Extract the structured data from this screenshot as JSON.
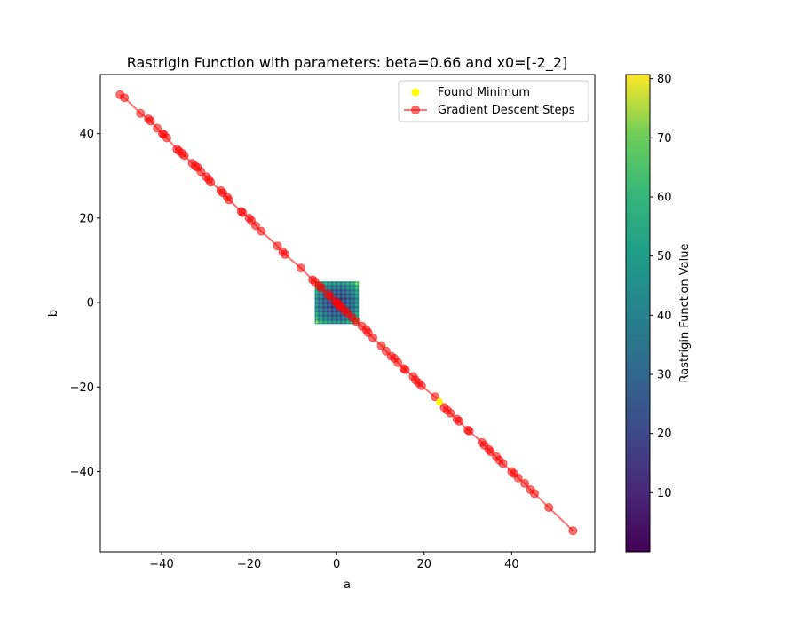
{
  "chart_data": {
    "type": "scatter",
    "title": "Rastrigin Function with parameters: beta=0.66 and x0=[-2_2]",
    "xlabel": "a",
    "ylabel": "b",
    "xlim": [
      -54,
      59
    ],
    "ylim": [
      -59,
      54
    ],
    "xticks": [
      -40,
      -20,
      0,
      20,
      40
    ],
    "yticks": [
      -40,
      -20,
      0,
      20,
      40
    ],
    "xtick_labels": [
      "−40",
      "−20",
      "0",
      "20",
      "40"
    ],
    "ytick_labels": [
      "−40",
      "−20",
      "0",
      "20",
      "40"
    ],
    "grid": false,
    "legend_position": "top-right",
    "legend": [
      "Found Minimum",
      "Gradient Descent Steps"
    ],
    "heatmap": {
      "x_range": [
        -5,
        5
      ],
      "y_range": [
        -5,
        5
      ],
      "colormap": "viridis",
      "value_range": [
        0,
        80.7
      ],
      "colorbar_label": "Rastrigin Function Value",
      "colorbar_ticks": [
        10,
        20,
        30,
        40,
        50,
        60,
        70,
        80
      ]
    },
    "series": [
      {
        "name": "Gradient Descent Steps",
        "color": "#ff0000",
        "alpha": 0.55,
        "x": [
          -49.5,
          -48.5,
          -44.8,
          -43.0,
          -42.5,
          -41.0,
          -39.8,
          -39.5,
          -38.8,
          -36.5,
          -36.0,
          -35.3,
          -34.8,
          -33.0,
          -32.3,
          -31.8,
          -31.0,
          -29.8,
          -29.2,
          -28.8,
          -26.5,
          -26.0,
          -25.0,
          -24.6,
          -21.8,
          -21.5,
          -20.0,
          -19.5,
          -18.5,
          -17.2,
          -13.5,
          -12.3,
          -11.8,
          -8.2,
          -5.5,
          -5.0,
          -4.0,
          -3.5,
          -2.0,
          -1.5,
          -0.3,
          0.2,
          0.5,
          1.0,
          1.8,
          2.5,
          3.5,
          4.5,
          5.8,
          6.8,
          7.2,
          8.3,
          10.2,
          11.3,
          12.5,
          13.2,
          14.0,
          15.3,
          15.7,
          17.5,
          18.0,
          18.7,
          19.4,
          22.5,
          24.6,
          25.3,
          26.0,
          27.5,
          28.0,
          30.0,
          30.3,
          33.2,
          33.8,
          34.8,
          35.2,
          36.5,
          37.2,
          38.0,
          40.0,
          40.5,
          41.5,
          43.0,
          44.3,
          45.2,
          48.5,
          54.0
        ],
        "y": [
          49.2,
          48.5,
          44.8,
          43.5,
          43.0,
          41.3,
          40.0,
          39.8,
          39.0,
          36.3,
          35.9,
          35.3,
          34.8,
          33.0,
          32.3,
          32.0,
          31.0,
          29.8,
          29.2,
          28.5,
          26.5,
          26.0,
          25.0,
          24.3,
          21.6,
          21.3,
          20.0,
          19.4,
          18.2,
          16.9,
          13.4,
          12.0,
          11.4,
          8.2,
          5.4,
          5.0,
          4.0,
          3.5,
          2.0,
          1.5,
          0.3,
          -0.2,
          -0.5,
          -1.0,
          -1.8,
          -2.5,
          -3.5,
          -4.5,
          -5.6,
          -6.5,
          -7.1,
          -8.3,
          -10.2,
          -11.5,
          -12.7,
          -13.2,
          -14.2,
          -15.6,
          -15.9,
          -17.5,
          -18.3,
          -19.0,
          -19.7,
          -22.3,
          -24.8,
          -25.5,
          -26.2,
          -27.6,
          -28.1,
          -30.2,
          -30.4,
          -33.1,
          -33.8,
          -34.8,
          -35.3,
          -36.5,
          -37.3,
          -38.1,
          -40.0,
          -40.5,
          -41.5,
          -42.8,
          -44.3,
          -45.2,
          -48.5,
          -54.0
        ]
      },
      {
        "name": "Found Minimum",
        "color": "#ffff00",
        "x": [
          23.5
        ],
        "y": [
          -23.5
        ]
      }
    ]
  }
}
